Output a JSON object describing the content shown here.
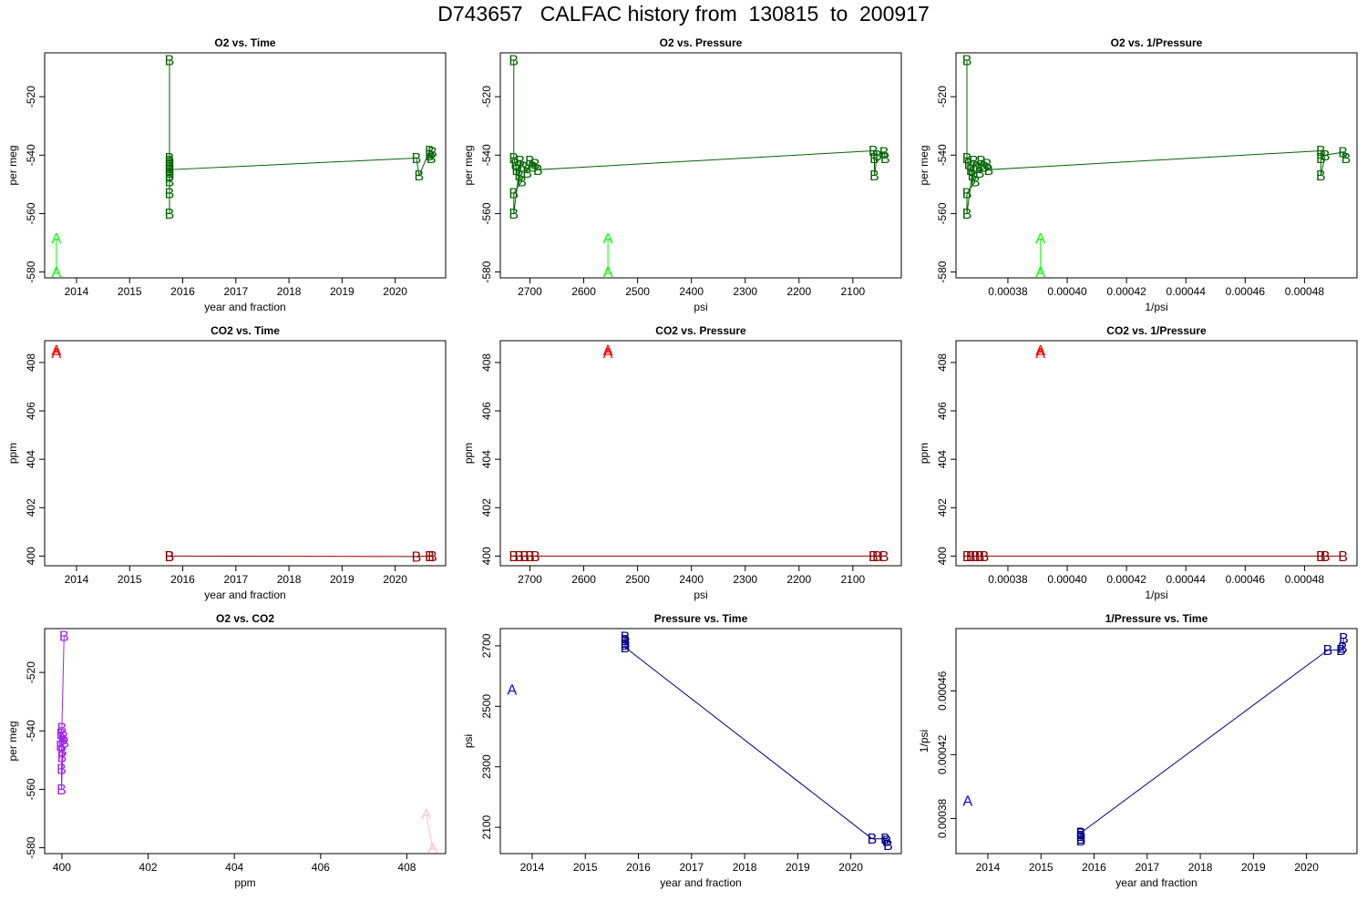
{
  "title": "D743657   CALFAC history from  130815  to  200917",
  "colors": {
    "o2_A": "#00ff00",
    "o2_B": "#006400",
    "co2_A": "#ff0000",
    "co2_B": "#8b0000",
    "o2co2_A": "#ffc0cb",
    "o2co2_B": "#a020f0",
    "p_A": "#0000ff",
    "p_B": "#00008b"
  },
  "chart_data": [
    {
      "type": "line",
      "title": "O2 vs. Time",
      "xlabel": "year and fraction",
      "ylabel": "per meg",
      "xlim": [
        2013.4,
        2020.95
      ],
      "ylim": [
        -582,
        -505
      ],
      "xticks": [
        2014,
        2015,
        2016,
        2017,
        2018,
        2019,
        2020
      ],
      "xtick_labels": [
        "2014",
        "2015",
        "2016",
        "2017",
        "2018",
        "2019",
        "2020"
      ],
      "yticks": [
        -520,
        -540,
        -560,
        -580
      ],
      "ytick_labels": [
        "-520",
        "-540",
        "-560",
        "-580"
      ],
      "series": [
        {
          "name": "A",
          "color_key": "o2_A",
          "points": [
            [
              2013.62,
              -568.5
            ],
            [
              2013.62,
              -580
            ]
          ]
        },
        {
          "name": "B",
          "color_key": "o2_B",
          "points": [
            [
              2015.75,
              -507.5
            ],
            [
              2015.75,
              -541
            ],
            [
              2015.75,
              -542
            ],
            [
              2015.75,
              -543
            ],
            [
              2015.75,
              -544
            ],
            [
              2015.75,
              -545
            ],
            [
              2015.75,
              -546
            ],
            [
              2015.75,
              -547
            ],
            [
              2015.75,
              -549
            ],
            [
              2015.75,
              -553
            ],
            [
              2015.75,
              -560
            ],
            [
              2015.75,
              -545
            ],
            [
              2020.4,
              -541
            ],
            [
              2020.45,
              -547
            ],
            [
              2020.65,
              -538.5
            ],
            [
              2020.65,
              -540
            ],
            [
              2020.68,
              -541
            ],
            [
              2020.7,
              -539
            ]
          ]
        }
      ]
    },
    {
      "type": "line",
      "title": "O2 vs. Pressure",
      "xlabel": "psi",
      "ylabel": "per meg",
      "xlim": [
        2755,
        2010
      ],
      "ylim": [
        -582,
        -505
      ],
      "xticks": [
        2700,
        2600,
        2500,
        2400,
        2300,
        2200,
        2100
      ],
      "xtick_labels": [
        "2700",
        "2600",
        "2500",
        "2400",
        "2300",
        "2200",
        "2100"
      ],
      "yticks": [
        -520,
        -540,
        -560,
        -580
      ],
      "ytick_labels": [
        "-520",
        "-540",
        "-560",
        "-580"
      ],
      "series": [
        {
          "name": "A",
          "color_key": "o2_A",
          "points": [
            [
              2555,
              -568.5
            ],
            [
              2555,
              -580
            ]
          ]
        },
        {
          "name": "B",
          "color_key": "o2_B",
          "points": [
            [
              2730,
              -507.5
            ],
            [
              2730,
              -541
            ],
            [
              2727,
              -543
            ],
            [
              2725,
              -545
            ],
            [
              2720,
              -547
            ],
            [
              2715,
              -549
            ],
            [
              2730,
              -553
            ],
            [
              2730,
              -560
            ],
            [
              2718,
              -542
            ],
            [
              2712,
              -544
            ],
            [
              2705,
              -546
            ],
            [
              2700,
              -542
            ],
            [
              2695,
              -544
            ],
            [
              2690,
              -543
            ],
            [
              2685,
              -545
            ],
            [
              2062,
              -538.5
            ],
            [
              2060,
              -541
            ],
            [
              2060,
              -547
            ],
            [
              2055,
              -540
            ],
            [
              2042,
              -539
            ],
            [
              2040,
              -541
            ]
          ]
        }
      ]
    },
    {
      "type": "line",
      "title": "O2 vs. 1/Pressure",
      "xlabel": "1/psi",
      "ylabel": "per meg",
      "xlim": [
        0.0003625,
        0.0004977
      ],
      "ylim": [
        -582,
        -505
      ],
      "xticks": [
        0.00038,
        0.0004,
        0.00042,
        0.00044,
        0.00046,
        0.00048
      ],
      "xtick_labels": [
        "0.00038",
        "0.00040",
        "0.00042",
        "0.00044",
        "0.00046",
        "0.00048"
      ],
      "yticks": [
        -520,
        -540,
        -560,
        -580
      ],
      "ytick_labels": [
        "-520",
        "-540",
        "-560",
        "-580"
      ],
      "series": [
        {
          "name": "A",
          "color_key": "o2_A",
          "points": [
            [
              0.000391,
              -568.5
            ],
            [
              0.000391,
              -580
            ]
          ]
        },
        {
          "name": "B",
          "color_key": "o2_B",
          "points": [
            [
              0.0003662,
              -507.5
            ],
            [
              0.0003662,
              -541
            ],
            [
              0.0003668,
              -543
            ],
            [
              0.0003675,
              -545
            ],
            [
              0.000368,
              -547
            ],
            [
              0.000369,
              -549
            ],
            [
              0.0003662,
              -553
            ],
            [
              0.0003662,
              -560
            ],
            [
              0.0003685,
              -542
            ],
            [
              0.0003695,
              -544
            ],
            [
              0.0003705,
              -546
            ],
            [
              0.000371,
              -542
            ],
            [
              0.000372,
              -544
            ],
            [
              0.000373,
              -543
            ],
            [
              0.0003735,
              -545
            ],
            [
              0.0004855,
              -538.5
            ],
            [
              0.0004855,
              -541
            ],
            [
              0.0004855,
              -547
            ],
            [
              0.000487,
              -540
            ],
            [
              0.000493,
              -539
            ],
            [
              0.000494,
              -541
            ]
          ]
        }
      ]
    },
    {
      "type": "line",
      "title": "CO2 vs. Time",
      "xlabel": "year and fraction",
      "ylabel": "ppm",
      "xlim": [
        2013.4,
        2020.95
      ],
      "ylim": [
        399.6,
        408.9
      ],
      "xticks": [
        2014,
        2015,
        2016,
        2017,
        2018,
        2019,
        2020
      ],
      "xtick_labels": [
        "2014",
        "2015",
        "2016",
        "2017",
        "2018",
        "2019",
        "2020"
      ],
      "yticks": [
        400,
        402,
        404,
        406,
        408
      ],
      "ytick_labels": [
        "400",
        "402",
        "404",
        "406",
        "408"
      ],
      "series": [
        {
          "name": "A",
          "color_key": "co2_A",
          "points": [
            [
              2013.62,
              408.5
            ],
            [
              2013.62,
              408.4
            ]
          ]
        },
        {
          "name": "B",
          "color_key": "co2_B",
          "points": [
            [
              2015.75,
              400
            ],
            [
              2015.75,
              400
            ],
            [
              2020.4,
              399.98
            ],
            [
              2020.65,
              400
            ],
            [
              2020.7,
              400
            ]
          ]
        }
      ]
    },
    {
      "type": "line",
      "title": "CO2 vs. Pressure",
      "xlabel": "psi",
      "ylabel": "ppm",
      "xlim": [
        2755,
        2010
      ],
      "ylim": [
        399.6,
        408.9
      ],
      "xticks": [
        2700,
        2600,
        2500,
        2400,
        2300,
        2200,
        2100
      ],
      "xtick_labels": [
        "2700",
        "2600",
        "2500",
        "2400",
        "2300",
        "2200",
        "2100"
      ],
      "yticks": [
        400,
        402,
        404,
        406,
        408
      ],
      "ytick_labels": [
        "400",
        "402",
        "404",
        "406",
        "408"
      ],
      "series": [
        {
          "name": "A",
          "color_key": "co2_A",
          "points": [
            [
              2555,
              408.5
            ],
            [
              2555,
              408.4
            ]
          ]
        },
        {
          "name": "B",
          "color_key": "co2_B",
          "points": [
            [
              2730,
              400
            ],
            [
              2720,
              400
            ],
            [
              2710,
              400
            ],
            [
              2700,
              400
            ],
            [
              2690,
              400
            ],
            [
              2062,
              400
            ],
            [
              2055,
              400
            ],
            [
              2042,
              400
            ]
          ]
        }
      ]
    },
    {
      "type": "line",
      "title": "CO2 vs. 1/Pressure",
      "xlabel": "1/psi",
      "ylabel": "ppm",
      "xlim": [
        0.0003625,
        0.0004977
      ],
      "ylim": [
        399.6,
        408.9
      ],
      "xticks": [
        0.00038,
        0.0004,
        0.00042,
        0.00044,
        0.00046,
        0.00048
      ],
      "xtick_labels": [
        "0.00038",
        "0.00040",
        "0.00042",
        "0.00044",
        "0.00046",
        "0.00048"
      ],
      "yticks": [
        400,
        402,
        404,
        406,
        408
      ],
      "ytick_labels": [
        "400",
        "402",
        "404",
        "406",
        "408"
      ],
      "series": [
        {
          "name": "A",
          "color_key": "co2_A",
          "points": [
            [
              0.000391,
              408.5
            ],
            [
              0.000391,
              408.4
            ]
          ]
        },
        {
          "name": "B",
          "color_key": "co2_B",
          "points": [
            [
              0.0003662,
              400
            ],
            [
              0.0003675,
              400
            ],
            [
              0.000369,
              400
            ],
            [
              0.0003705,
              400
            ],
            [
              0.000372,
              400
            ],
            [
              0.0004855,
              400
            ],
            [
              0.000487,
              400
            ],
            [
              0.000493,
              400
            ]
          ]
        }
      ]
    },
    {
      "type": "line",
      "title": "O2 vs. CO2",
      "xlabel": "ppm",
      "ylabel": "per meg",
      "xlim": [
        399.6,
        408.9
      ],
      "ylim": [
        -582,
        -505
      ],
      "xticks": [
        400,
        402,
        404,
        406,
        408
      ],
      "xtick_labels": [
        "400",
        "402",
        "404",
        "406",
        "408"
      ],
      "yticks": [
        -520,
        -540,
        -560,
        -580
      ],
      "ytick_labels": [
        "-520",
        "-540",
        "-560",
        "-580"
      ],
      "series": [
        {
          "name": "A",
          "color_key": "o2co2_A",
          "points": [
            [
              408.45,
              -568.5
            ],
            [
              408.6,
              -580
            ]
          ]
        },
        {
          "name": "B",
          "color_key": "o2co2_B",
          "points": [
            [
              400.05,
              -507.5
            ],
            [
              400.0,
              -539
            ],
            [
              399.98,
              -541
            ],
            [
              400.02,
              -543
            ],
            [
              399.97,
              -545
            ],
            [
              400.01,
              -547
            ],
            [
              400.0,
              -549
            ],
            [
              399.99,
              -553
            ],
            [
              399.99,
              -560
            ],
            [
              400.04,
              -542
            ],
            [
              400.06,
              -544
            ]
          ]
        }
      ]
    },
    {
      "type": "line",
      "title": "Pressure vs. Time",
      "xlabel": "year and fraction",
      "ylabel": "psi",
      "xlim": [
        2013.4,
        2020.95
      ],
      "ylim": [
        2013,
        2757
      ],
      "xticks": [
        2014,
        2015,
        2016,
        2017,
        2018,
        2019,
        2020
      ],
      "xtick_labels": [
        "2014",
        "2015",
        "2016",
        "2017",
        "2018",
        "2019",
        "2020"
      ],
      "yticks": [
        2100,
        2300,
        2500,
        2700
      ],
      "ytick_labels": [
        "2100",
        "2300",
        "2500",
        "2700"
      ],
      "series": [
        {
          "name": "A",
          "color_key": "p_A",
          "points": [
            [
              2013.62,
              2555
            ]
          ]
        },
        {
          "name": "B",
          "color_key": "p_B",
          "points": [
            [
              2015.75,
              2730
            ],
            [
              2015.75,
              2720
            ],
            [
              2015.75,
              2712
            ],
            [
              2015.75,
              2705
            ],
            [
              2015.75,
              2695
            ],
            [
              2020.4,
              2062
            ],
            [
              2020.65,
              2062
            ],
            [
              2020.68,
              2055
            ],
            [
              2020.7,
              2042
            ]
          ]
        }
      ]
    },
    {
      "type": "line",
      "title": "1/Pressure vs. Time",
      "xlabel": "year and fraction",
      "ylabel": "1/psi",
      "xlim": [
        2013.4,
        2020.95
      ],
      "ylim": [
        0.000358,
        0.000499
      ],
      "xticks": [
        2014,
        2015,
        2016,
        2017,
        2018,
        2019,
        2020
      ],
      "xtick_labels": [
        "2014",
        "2015",
        "2016",
        "2017",
        "2018",
        "2019",
        "2020"
      ],
      "yticks": [
        0.00038,
        0.00042,
        0.00046
      ],
      "ytick_labels": [
        "0.00038",
        "0.00042",
        "0.00046"
      ],
      "series": [
        {
          "name": "A",
          "color_key": "p_A",
          "points": [
            [
              2013.62,
              0.000391
            ]
          ]
        },
        {
          "name": "B",
          "color_key": "p_B",
          "points": [
            [
              2015.75,
              0.0003662
            ],
            [
              2015.75,
              0.0003675
            ],
            [
              2015.75,
              0.000369
            ],
            [
              2015.75,
              0.0003705
            ],
            [
              2015.75,
              0.000371
            ],
            [
              2020.4,
              0.0004855
            ],
            [
              2020.65,
              0.0004855
            ],
            [
              2020.68,
              0.000487
            ],
            [
              2020.7,
              0.000493
            ]
          ]
        }
      ]
    }
  ]
}
